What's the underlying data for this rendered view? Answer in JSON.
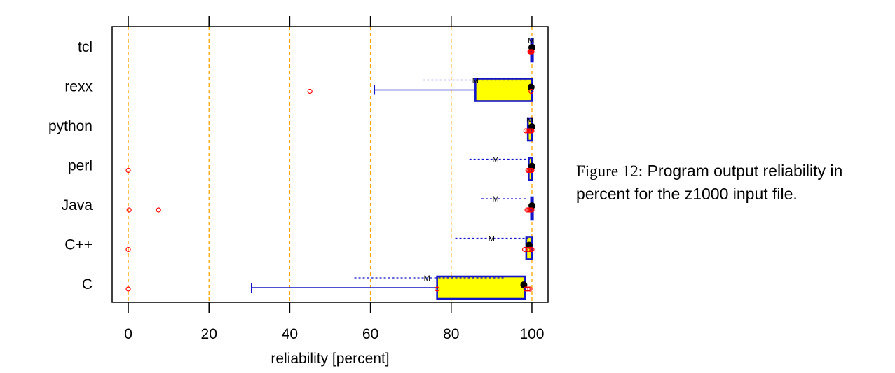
{
  "chart_data": {
    "type": "boxplot",
    "xlabel": "reliability [percent]",
    "xlim": [
      -4,
      104
    ],
    "xticks": [
      0,
      20,
      40,
      60,
      80,
      100
    ],
    "grid": "vertical dashed orange",
    "colors": {
      "box_fill": "#ffff00",
      "box_stroke": "#1414c8",
      "outlier": "#ff0000",
      "median": "#000000",
      "mean_line": "#1414c8",
      "grid": "#ffa500"
    },
    "categories": [
      "tcl",
      "rexx",
      "python",
      "perl",
      "Java",
      "C++",
      "C"
    ],
    "series": [
      {
        "category": "tcl",
        "q1": 99.8,
        "q3": 100,
        "whisker_low": 99.8,
        "whisker_high": 100,
        "median": 100,
        "mean": 99.8,
        "mean_sd_low": 99.7,
        "mean_sd_high": 100,
        "points": [
          99.5,
          99.7,
          99.8,
          100,
          100
        ]
      },
      {
        "category": "rexx",
        "q1": 86,
        "q3": 100,
        "whisker_low": 61,
        "whisker_high": 100,
        "median": 99.8,
        "mean": 86,
        "mean_sd_low": 73,
        "mean_sd_high": 99,
        "points": [
          45,
          99.8
        ]
      },
      {
        "category": "python",
        "q1": 99,
        "q3": 100,
        "whisker_low": 99,
        "whisker_high": 100,
        "median": 100,
        "mean": 99.5,
        "mean_sd_low": 99,
        "mean_sd_high": 100,
        "points": [
          98.5,
          99,
          99.3,
          99.6,
          99.8,
          100
        ]
      },
      {
        "category": "perl",
        "q1": 99.2,
        "q3": 100,
        "whisker_low": 99.2,
        "whisker_high": 100,
        "median": 100,
        "mean": 91,
        "mean_sd_low": 84.5,
        "mean_sd_high": 99.5,
        "points": [
          0,
          99,
          99.3,
          99.6,
          99.8,
          100
        ]
      },
      {
        "category": "Java",
        "q1": 99.8,
        "q3": 100,
        "whisker_low": 99.8,
        "whisker_high": 100,
        "median": 100,
        "mean": 91,
        "mean_sd_low": 87.5,
        "mean_sd_high": 99,
        "points": [
          0.2,
          7.5,
          98.8,
          99.3,
          99.6,
          100
        ]
      },
      {
        "category": "C++",
        "q1": 98.6,
        "q3": 100,
        "whisker_low": 98.6,
        "whisker_high": 100,
        "median": 99.3,
        "mean": 90,
        "mean_sd_low": 81,
        "mean_sd_high": 99,
        "points": [
          0,
          98.2,
          99,
          99.5,
          100
        ]
      },
      {
        "category": "C",
        "q1": 76.5,
        "q3": 98.3,
        "whisker_low": 30.5,
        "whisker_high": 98.3,
        "median": 98,
        "mean": 74,
        "mean_sd_low": 56,
        "mean_sd_high": 93.5,
        "points": [
          0,
          76.5,
          98.5,
          99,
          99.5
        ]
      }
    ]
  },
  "caption": {
    "figure_label": "Figure 12:",
    "text": "Program output reliability in percent for the z1000 input file."
  }
}
